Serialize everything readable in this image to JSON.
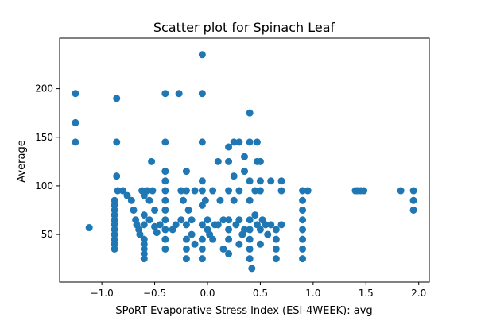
{
  "chart_data": {
    "type": "scatter",
    "title": "Scatter plot for Spinach Leaf",
    "xlabel": "SPoRT Evaporative Stress Index (ESI-4WEEK): avg",
    "ylabel": "Average",
    "xlim": [
      -1.4,
      2.1
    ],
    "ylim": [
      1,
      252
    ],
    "xticks": [
      -1.0,
      -0.5,
      0.0,
      0.5,
      1.0,
      1.5,
      2.0
    ],
    "xtick_labels": [
      "−1.0",
      "−0.5",
      "0.0",
      "0.5",
      "1.0",
      "1.5",
      "2.0"
    ],
    "yticks": [
      50,
      100,
      150,
      200
    ],
    "ytick_labels": [
      "50",
      "100",
      "150",
      "200"
    ],
    "grid": false,
    "marker_color": "#1f77b4",
    "series": [
      {
        "points": [
          [
            -1.25,
            195
          ],
          [
            -1.25,
            165
          ],
          [
            -1.25,
            145
          ],
          [
            -1.12,
            57
          ],
          [
            -0.88,
            85
          ],
          [
            -0.88,
            80
          ],
          [
            -0.88,
            75
          ],
          [
            -0.88,
            70
          ],
          [
            -0.88,
            65
          ],
          [
            -0.88,
            60
          ],
          [
            -0.88,
            55
          ],
          [
            -0.88,
            50
          ],
          [
            -0.88,
            45
          ],
          [
            -0.88,
            40
          ],
          [
            -0.88,
            35
          ],
          [
            -0.86,
            190
          ],
          [
            -0.86,
            145
          ],
          [
            -0.86,
            110
          ],
          [
            -0.85,
            95
          ],
          [
            -0.8,
            95
          ],
          [
            -0.76,
            90
          ],
          [
            -0.72,
            85
          ],
          [
            -0.7,
            75
          ],
          [
            -0.68,
            65
          ],
          [
            -0.67,
            60
          ],
          [
            -0.65,
            55
          ],
          [
            -0.64,
            50
          ],
          [
            -0.62,
            95
          ],
          [
            -0.6,
            90
          ],
          [
            -0.6,
            70
          ],
          [
            -0.6,
            60
          ],
          [
            -0.6,
            45
          ],
          [
            -0.6,
            40
          ],
          [
            -0.6,
            35
          ],
          [
            -0.6,
            30
          ],
          [
            -0.6,
            25
          ],
          [
            -0.57,
            95
          ],
          [
            -0.55,
            85
          ],
          [
            -0.55,
            65
          ],
          [
            -0.53,
            125
          ],
          [
            -0.52,
            95
          ],
          [
            -0.5,
            75
          ],
          [
            -0.5,
            58
          ],
          [
            -0.48,
            52
          ],
          [
            -0.45,
            60
          ],
          [
            -0.4,
            195
          ],
          [
            -0.4,
            145
          ],
          [
            -0.4,
            115
          ],
          [
            -0.4,
            105
          ],
          [
            -0.4,
            95
          ],
          [
            -0.4,
            85
          ],
          [
            -0.4,
            75
          ],
          [
            -0.4,
            65
          ],
          [
            -0.4,
            55
          ],
          [
            -0.4,
            45
          ],
          [
            -0.4,
            35
          ],
          [
            -0.33,
            55
          ],
          [
            -0.3,
            60
          ],
          [
            -0.27,
            195
          ],
          [
            -0.25,
            95
          ],
          [
            -0.25,
            65
          ],
          [
            -0.23,
            85
          ],
          [
            -0.2,
            115
          ],
          [
            -0.2,
            95
          ],
          [
            -0.2,
            60
          ],
          [
            -0.2,
            45
          ],
          [
            -0.2,
            35
          ],
          [
            -0.2,
            25
          ],
          [
            -0.18,
            75
          ],
          [
            -0.15,
            65
          ],
          [
            -0.15,
            50
          ],
          [
            -0.12,
            95
          ],
          [
            -0.12,
            40
          ],
          [
            -0.05,
            235
          ],
          [
            -0.05,
            195
          ],
          [
            -0.05,
            145
          ],
          [
            -0.05,
            105
          ],
          [
            -0.05,
            95
          ],
          [
            -0.05,
            80
          ],
          [
            -0.05,
            60
          ],
          [
            -0.05,
            45
          ],
          [
            -0.05,
            35
          ],
          [
            -0.05,
            25
          ],
          [
            -0.02,
            85
          ],
          [
            0.0,
            65
          ],
          [
            0.0,
            55
          ],
          [
            0.02,
            50
          ],
          [
            0.05,
            95
          ],
          [
            0.05,
            45
          ],
          [
            0.07,
            60
          ],
          [
            0.1,
            125
          ],
          [
            0.1,
            60
          ],
          [
            0.12,
            85
          ],
          [
            0.15,
            65
          ],
          [
            0.15,
            35
          ],
          [
            0.2,
            140
          ],
          [
            0.2,
            125
          ],
          [
            0.2,
            95
          ],
          [
            0.2,
            65
          ],
          [
            0.2,
            55
          ],
          [
            0.2,
            45
          ],
          [
            0.2,
            30
          ],
          [
            0.25,
            145
          ],
          [
            0.25,
            110
          ],
          [
            0.25,
            85
          ],
          [
            0.27,
            60
          ],
          [
            0.3,
            145
          ],
          [
            0.3,
            95
          ],
          [
            0.3,
            65
          ],
          [
            0.3,
            40
          ],
          [
            0.33,
            50
          ],
          [
            0.35,
            130
          ],
          [
            0.35,
            115
          ],
          [
            0.35,
            55
          ],
          [
            0.4,
            175
          ],
          [
            0.4,
            145
          ],
          [
            0.4,
            105
          ],
          [
            0.4,
            85
          ],
          [
            0.4,
            65
          ],
          [
            0.4,
            55
          ],
          [
            0.4,
            45
          ],
          [
            0.4,
            35
          ],
          [
            0.4,
            25
          ],
          [
            0.42,
            15
          ],
          [
            0.45,
            95
          ],
          [
            0.45,
            70
          ],
          [
            0.47,
            145
          ],
          [
            0.47,
            125
          ],
          [
            0.47,
            60
          ],
          [
            0.5,
            125
          ],
          [
            0.5,
            105
          ],
          [
            0.5,
            95
          ],
          [
            0.5,
            55
          ],
          [
            0.5,
            40
          ],
          [
            0.52,
            65
          ],
          [
            0.55,
            60
          ],
          [
            0.57,
            50
          ],
          [
            0.6,
            105
          ],
          [
            0.6,
            60
          ],
          [
            0.65,
            55
          ],
          [
            0.65,
            45
          ],
          [
            0.65,
            35
          ],
          [
            0.65,
            25
          ],
          [
            0.7,
            105
          ],
          [
            0.7,
            95
          ],
          [
            0.7,
            60
          ],
          [
            0.9,
            95
          ],
          [
            0.9,
            85
          ],
          [
            0.9,
            75
          ],
          [
            0.9,
            65
          ],
          [
            0.9,
            55
          ],
          [
            0.9,
            45
          ],
          [
            0.9,
            35
          ],
          [
            0.9,
            25
          ],
          [
            0.95,
            95
          ],
          [
            1.4,
            95
          ],
          [
            1.42,
            95
          ],
          [
            1.45,
            95
          ],
          [
            1.48,
            95
          ],
          [
            1.83,
            95
          ],
          [
            1.95,
            95
          ],
          [
            1.95,
            85
          ],
          [
            1.95,
            75
          ]
        ]
      }
    ]
  }
}
